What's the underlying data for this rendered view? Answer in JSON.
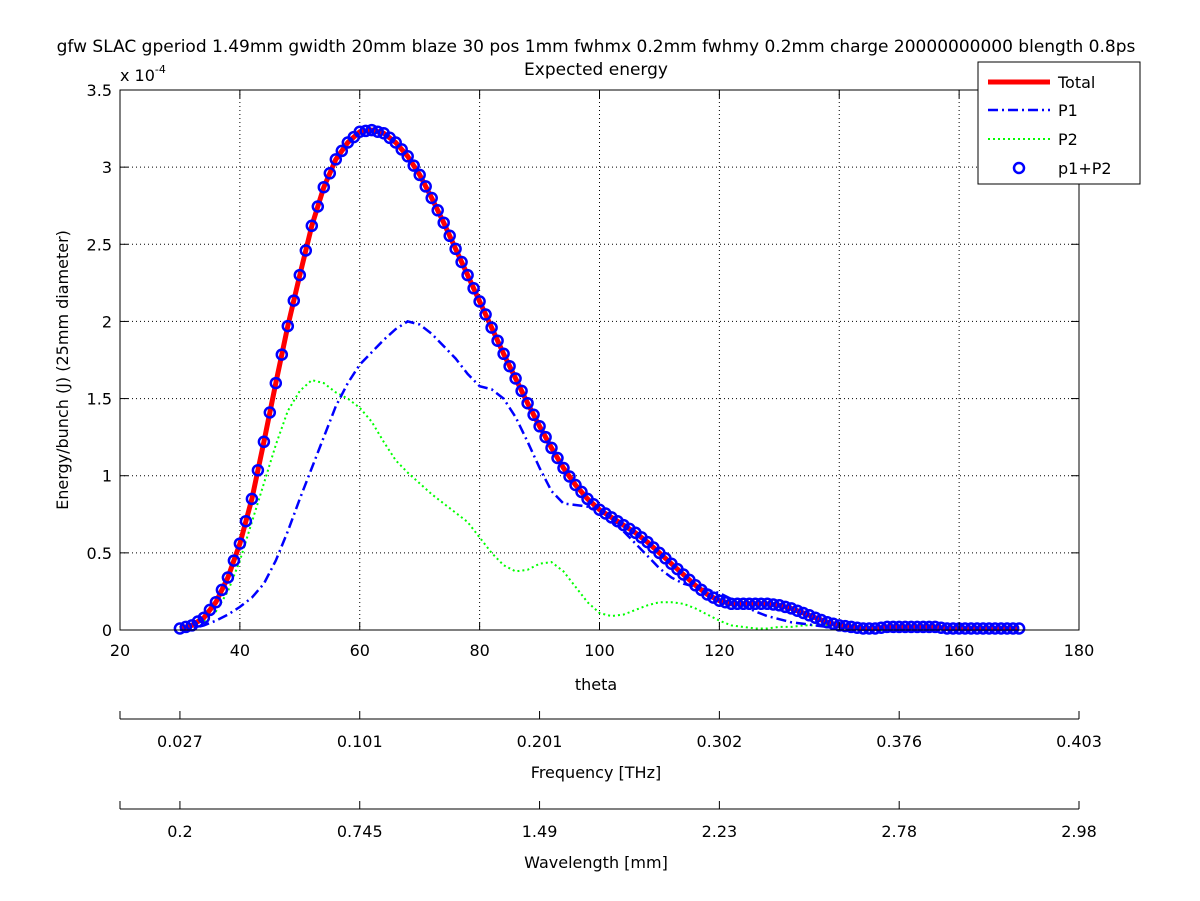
{
  "chart_data": {
    "type": "line",
    "title": "gfw SLAC gperiod 1.49mm gwidth 20mm blaze 30 pos 1mm fwhmx 0.2mm fwhmy 0.2mm charge 20000000000 blength 0.8ps",
    "subtitle": "Expected energy",
    "xlabel": "theta",
    "ylabel": "Energy/bunch (J) (25mm diameter)",
    "y_exponent_label": "x 10",
    "y_exponent_power": "-4",
    "xlim": [
      20,
      180
    ],
    "ylim": [
      0,
      3.5
    ],
    "x_ticks": [
      20,
      40,
      60,
      80,
      100,
      120,
      140,
      160,
      180
    ],
    "x_tick_labels": [
      "20",
      "40",
      "60",
      "80",
      "100",
      "120",
      "140",
      "160",
      "180"
    ],
    "y_ticks": [
      0,
      0.5,
      1,
      1.5,
      2,
      2.5,
      3,
      3.5
    ],
    "y_tick_labels": [
      "0",
      "0.5",
      "1",
      "1.5",
      "2",
      "2.5",
      "3",
      "3.5"
    ],
    "grid": true,
    "legend_position": "top-right",
    "secondary_axes": [
      {
        "label": "Frequency [THz]",
        "ticks": [
          20,
          30,
          60,
          90,
          120,
          150,
          180
        ],
        "tick_labels": [
          "",
          "0.027",
          "0.101",
          "0.201",
          "0.302",
          "0.376",
          "0.403"
        ]
      },
      {
        "label": "Wavelength [mm]",
        "ticks": [
          20,
          30,
          60,
          90,
          120,
          150,
          180
        ],
        "tick_labels": [
          "",
          "0.2",
          "0.745",
          "1.49",
          "2.23",
          "2.78",
          "2.98"
        ]
      }
    ],
    "series": [
      {
        "name": "Total",
        "style": "solid",
        "color": "#ff0000",
        "x": [
          30,
          32,
          34,
          36,
          38,
          40,
          42,
          44,
          46,
          48,
          50,
          52,
          54,
          56,
          58,
          60,
          62,
          64,
          66,
          68,
          70,
          72,
          74,
          76,
          78,
          80,
          82,
          84,
          86,
          88,
          90,
          92,
          94,
          96,
          98,
          100,
          102,
          104,
          106,
          108,
          110,
          112,
          114,
          116,
          118,
          120,
          122,
          124,
          126,
          128,
          130,
          132,
          134,
          136,
          138,
          140,
          142,
          144,
          146,
          148,
          150,
          152,
          154,
          156,
          158,
          160,
          162,
          164,
          166,
          168,
          170
        ],
        "y": [
          0.01,
          0.03,
          0.08,
          0.18,
          0.34,
          0.56,
          0.85,
          1.22,
          1.6,
          1.97,
          2.3,
          2.62,
          2.87,
          3.05,
          3.16,
          3.23,
          3.24,
          3.22,
          3.16,
          3.07,
          2.95,
          2.8,
          2.64,
          2.47,
          2.3,
          2.13,
          1.96,
          1.79,
          1.63,
          1.47,
          1.32,
          1.18,
          1.05,
          0.94,
          0.85,
          0.78,
          0.73,
          0.68,
          0.63,
          0.57,
          0.5,
          0.43,
          0.36,
          0.29,
          0.23,
          0.19,
          0.17,
          0.17,
          0.17,
          0.17,
          0.16,
          0.14,
          0.11,
          0.08,
          0.05,
          0.03,
          0.02,
          0.01,
          0.01,
          0.02,
          0.02,
          0.02,
          0.02,
          0.02,
          0.01,
          0.01,
          0.01,
          0.01,
          0.01,
          0.01,
          0.01
        ]
      },
      {
        "name": "P1",
        "style": "dashdot",
        "color": "#0000ff",
        "x": [
          30,
          32,
          34,
          36,
          38,
          40,
          42,
          44,
          46,
          48,
          50,
          52,
          54,
          56,
          58,
          60,
          62,
          64,
          66,
          68,
          70,
          72,
          74,
          76,
          78,
          80,
          82,
          84,
          86,
          88,
          90,
          92,
          94,
          96,
          98,
          100,
          102,
          104,
          106,
          108,
          110,
          112,
          114,
          116,
          118,
          120,
          122,
          124,
          126,
          128,
          130,
          132,
          134,
          136,
          138,
          140,
          142,
          144,
          146,
          148,
          150
        ],
        "y": [
          0.0,
          0.01,
          0.03,
          0.06,
          0.1,
          0.15,
          0.21,
          0.3,
          0.45,
          0.64,
          0.85,
          1.05,
          1.25,
          1.45,
          1.6,
          1.72,
          1.8,
          1.88,
          1.95,
          2.0,
          1.98,
          1.92,
          1.84,
          1.76,
          1.66,
          1.58,
          1.56,
          1.5,
          1.38,
          1.22,
          1.05,
          0.9,
          0.82,
          0.81,
          0.8,
          0.78,
          0.72,
          0.64,
          0.56,
          0.48,
          0.4,
          0.34,
          0.3,
          0.28,
          0.26,
          0.24,
          0.2,
          0.16,
          0.12,
          0.09,
          0.07,
          0.05,
          0.04,
          0.03,
          0.02,
          0.02,
          0.01,
          0.01,
          0.01,
          0.0,
          0.0
        ]
      },
      {
        "name": "P2",
        "style": "dotted",
        "color": "#00ff00",
        "x": [
          30,
          32,
          34,
          36,
          38,
          40,
          42,
          44,
          46,
          48,
          50,
          52,
          54,
          56,
          58,
          60,
          62,
          64,
          66,
          68,
          70,
          72,
          74,
          76,
          78,
          80,
          82,
          84,
          86,
          88,
          90,
          92,
          94,
          96,
          98,
          100,
          102,
          104,
          106,
          108,
          110,
          112,
          114,
          116,
          118,
          120,
          122,
          124,
          126,
          128,
          130,
          132,
          134,
          136,
          138,
          140,
          142,
          144,
          146,
          148,
          150
        ],
        "y": [
          0.01,
          0.03,
          0.06,
          0.12,
          0.25,
          0.45,
          0.7,
          0.95,
          1.2,
          1.42,
          1.55,
          1.62,
          1.6,
          1.54,
          1.5,
          1.44,
          1.35,
          1.22,
          1.1,
          1.02,
          0.95,
          0.88,
          0.82,
          0.76,
          0.7,
          0.6,
          0.5,
          0.42,
          0.38,
          0.39,
          0.43,
          0.44,
          0.38,
          0.28,
          0.18,
          0.11,
          0.09,
          0.1,
          0.13,
          0.16,
          0.18,
          0.18,
          0.17,
          0.14,
          0.1,
          0.06,
          0.03,
          0.02,
          0.01,
          0.01,
          0.02,
          0.02,
          0.03,
          0.03,
          0.03,
          0.03,
          0.02,
          0.01,
          0.0,
          0.0,
          0.0
        ]
      },
      {
        "name": "p1+P2",
        "style": "circles",
        "color": "#0000ff",
        "x_start": 30,
        "x_end": 170,
        "x_step": 1
      }
    ]
  }
}
